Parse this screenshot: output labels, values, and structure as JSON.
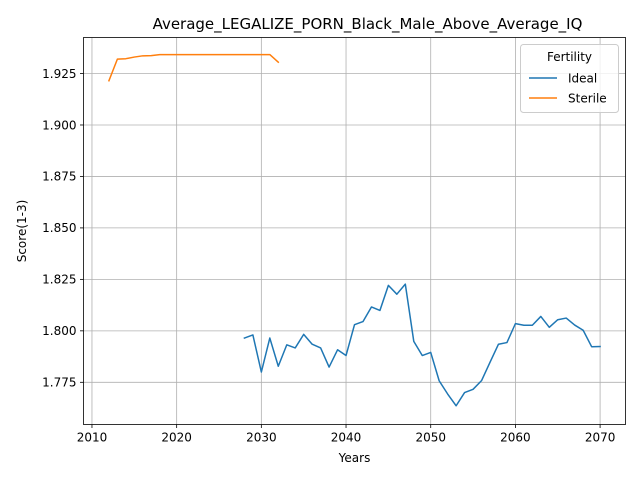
{
  "chart_data": {
    "type": "line",
    "title": "Average_LEGALIZE_PORN_Black_Male_Above_Average_IQ",
    "xlabel": "Years",
    "ylabel": "Score(1-3)",
    "xlim": [
      2009,
      2073
    ],
    "ylim": [
      1.7545,
      1.9425
    ],
    "xticks": [
      2010,
      2020,
      2030,
      2040,
      2050,
      2060,
      2070
    ],
    "yticks": [
      1.775,
      1.8,
      1.825,
      1.85,
      1.875,
      1.9,
      1.925
    ],
    "grid": true,
    "legend": {
      "title": "Fertility",
      "placement": "top-right"
    },
    "series": [
      {
        "name": "Ideal",
        "color": "#1f77b4",
        "x": [
          2028,
          2029,
          2030,
          2031,
          2032,
          2033,
          2034,
          2035,
          2036,
          2037,
          2038,
          2039,
          2040,
          2041,
          2042,
          2043,
          2044,
          2045,
          2046,
          2047,
          2048,
          2049,
          2050,
          2051,
          2052,
          2053,
          2054,
          2055,
          2056,
          2057,
          2058,
          2059,
          2060,
          2061,
          2062,
          2063,
          2064,
          2065,
          2066,
          2067,
          2068,
          2069,
          2070
        ],
        "y": [
          1.7965,
          1.798,
          1.78,
          1.7965,
          1.7828,
          1.7932,
          1.7917,
          1.7983,
          1.7935,
          1.7917,
          1.7824,
          1.7908,
          1.788,
          1.803,
          1.8045,
          1.8116,
          1.8099,
          1.8221,
          1.8178,
          1.8227,
          1.7949,
          1.788,
          1.7895,
          1.7757,
          1.7693,
          1.7636,
          1.77,
          1.7716,
          1.7758,
          1.7847,
          1.7935,
          1.7943,
          1.8035,
          1.8027,
          1.8027,
          1.807,
          1.8017,
          1.8054,
          1.8062,
          1.8028,
          1.8003,
          1.7923,
          1.7924
        ]
      },
      {
        "name": "Sterile",
        "color": "#ff7f0e",
        "x": [
          2012,
          2013,
          2014,
          2015,
          2016,
          2017,
          2018,
          2019,
          2020,
          2021,
          2022,
          2023,
          2024,
          2025,
          2026,
          2027,
          2028,
          2029,
          2030,
          2031,
          2032
        ],
        "y": [
          1.9215,
          1.932,
          1.9322,
          1.933,
          1.9336,
          1.9337,
          1.9342,
          1.9342,
          1.9342,
          1.9342,
          1.9342,
          1.9342,
          1.9342,
          1.9342,
          1.9342,
          1.9342,
          1.9342,
          1.9342,
          1.9342,
          1.9342,
          1.9305
        ]
      }
    ]
  }
}
